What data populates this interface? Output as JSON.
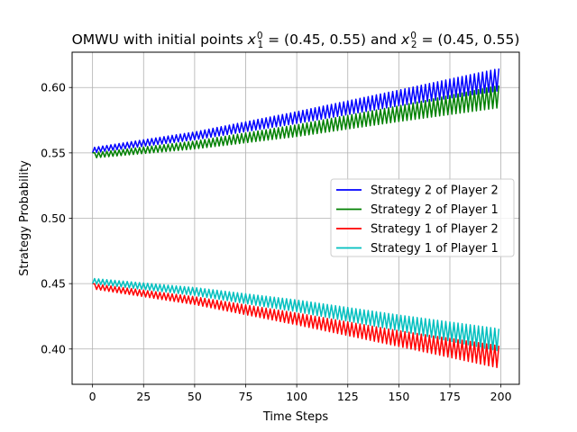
{
  "chart_data": {
    "type": "line",
    "title": "OMWU with initial points x₁⁰ = (0.45, 0.55) and x₂⁰ = (0.45, 0.55)",
    "title_parts": {
      "prefix": "OMWU with initial points ",
      "p1": "x",
      "p1_sub": "1",
      "p1_sup": "0",
      "p1_value": " = (0.45, 0.55) and ",
      "p2": "x",
      "p2_sub": "2",
      "p2_sup": "0",
      "p2_value": " = (0.45, 0.55)"
    },
    "xlabel": "Time Steps",
    "ylabel": "Strategy Probability",
    "xlim": [
      -10,
      209
    ],
    "ylim": [
      0.373,
      0.627
    ],
    "xticks": [
      0,
      25,
      50,
      75,
      100,
      125,
      150,
      175,
      200
    ],
    "yticks": [
      0.4,
      0.45,
      0.5,
      0.55,
      0.6
    ],
    "ytick_labels": [
      "0.40",
      "0.45",
      "0.50",
      "0.55",
      "0.60"
    ],
    "grid": true,
    "legend_position": "center-right",
    "x_range": [
      0,
      199
    ],
    "series": [
      {
        "name": "Strategy 2 of Player 2",
        "color": "#0000ff",
        "center": [
          [
            0,
            0.552
          ],
          [
            50,
            0.563
          ],
          [
            100,
            0.577
          ],
          [
            150,
            0.592
          ],
          [
            199,
            0.606
          ]
        ],
        "amplitude": [
          [
            0,
            0.002
          ],
          [
            50,
            0.003
          ],
          [
            100,
            0.0045
          ],
          [
            150,
            0.006
          ],
          [
            199,
            0.0085
          ]
        ],
        "start": 0.55
      },
      {
        "name": "Strategy 2 of Player 1",
        "color": "#008000",
        "center": [
          [
            0,
            0.548
          ],
          [
            50,
            0.556
          ],
          [
            100,
            0.567
          ],
          [
            150,
            0.58
          ],
          [
            199,
            0.593
          ]
        ],
        "amplitude": [
          [
            0,
            0.002
          ],
          [
            50,
            0.003
          ],
          [
            100,
            0.0045
          ],
          [
            150,
            0.006
          ],
          [
            199,
            0.0085
          ]
        ],
        "start": 0.55
      },
      {
        "name": "Strategy 1 of Player 2",
        "color": "#ff0000",
        "center": [
          [
            0,
            0.448
          ],
          [
            50,
            0.437
          ],
          [
            100,
            0.423
          ],
          [
            150,
            0.408
          ],
          [
            199,
            0.394
          ]
        ],
        "amplitude": [
          [
            0,
            0.002
          ],
          [
            50,
            0.003
          ],
          [
            100,
            0.0045
          ],
          [
            150,
            0.006
          ],
          [
            199,
            0.0085
          ]
        ],
        "start": 0.45
      },
      {
        "name": "Strategy 1 of Player 1",
        "color": "#00bfbf",
        "center": [
          [
            0,
            0.452
          ],
          [
            50,
            0.444
          ],
          [
            100,
            0.433
          ],
          [
            150,
            0.42
          ],
          [
            199,
            0.407
          ]
        ],
        "amplitude": [
          [
            0,
            0.002
          ],
          [
            50,
            0.003
          ],
          [
            100,
            0.0045
          ],
          [
            150,
            0.006
          ],
          [
            199,
            0.0085
          ]
        ],
        "start": 0.45
      }
    ]
  }
}
